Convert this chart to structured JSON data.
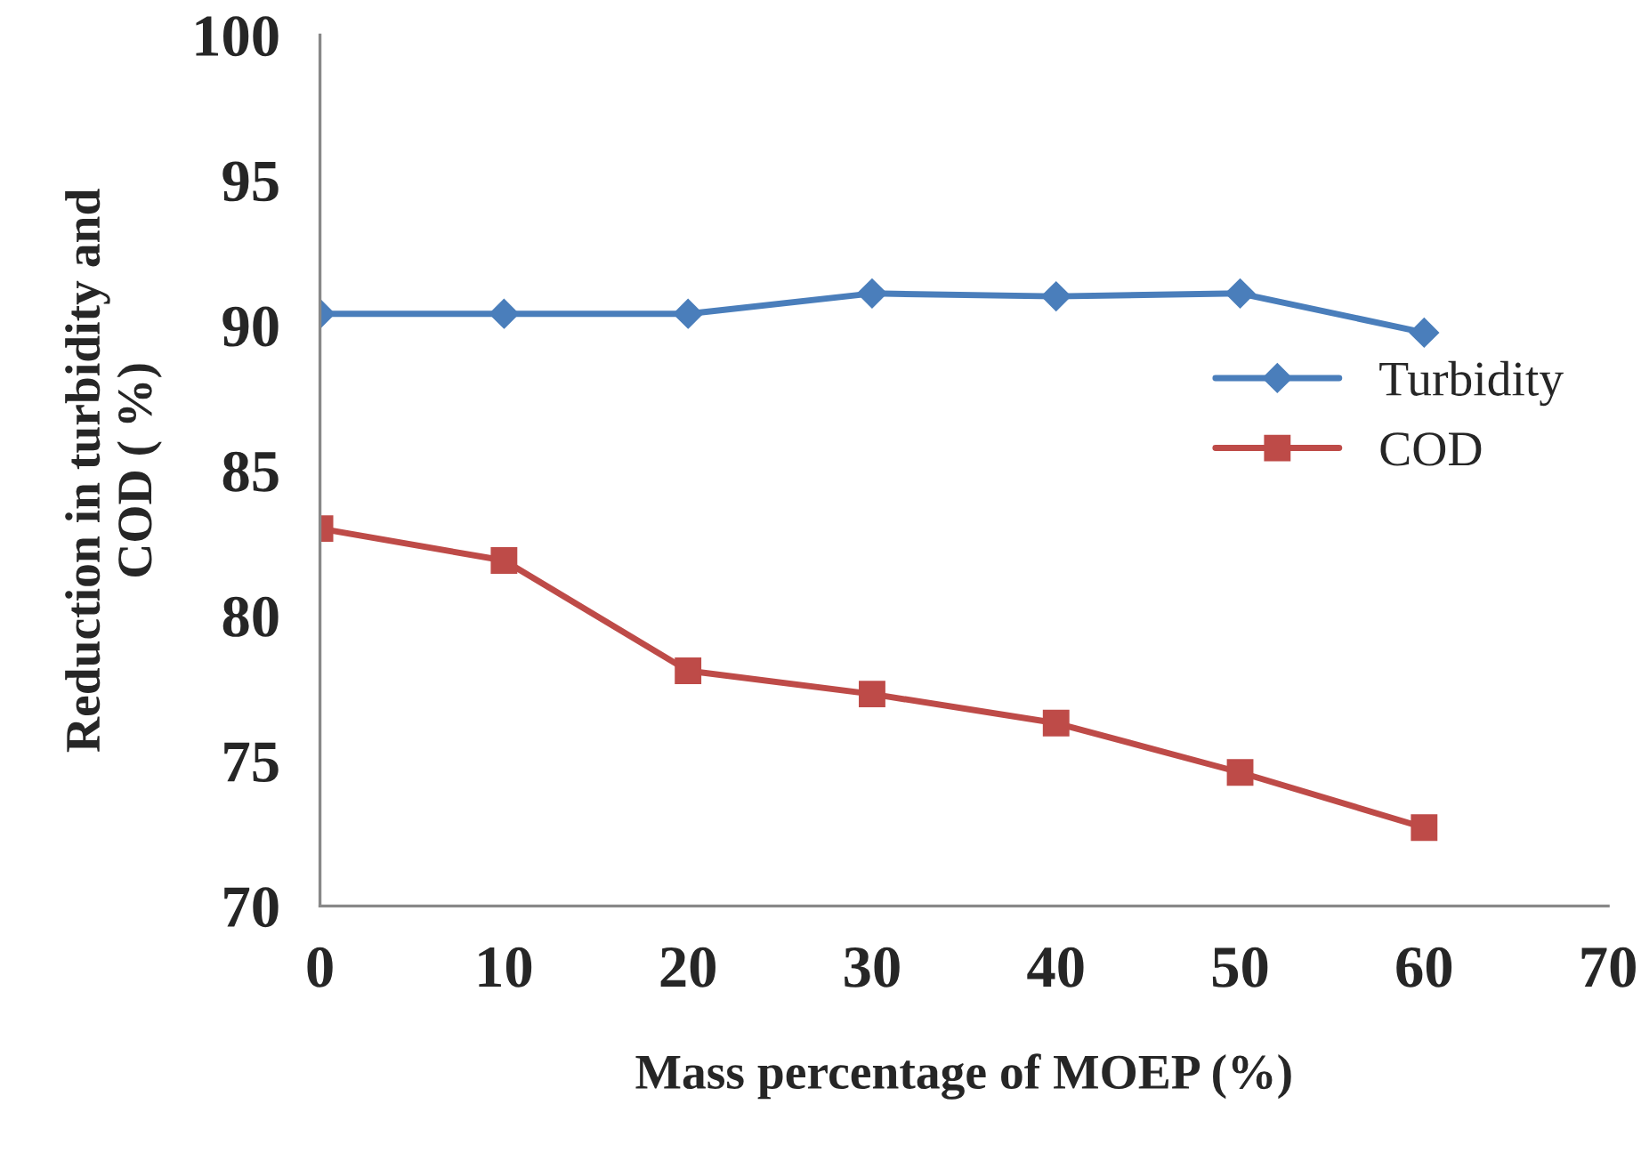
{
  "chart_data": {
    "type": "line",
    "xlabel": "Mass percentage of MOEP (%)",
    "ylabel": "Reduction in turbidity and\nCOD ( %)",
    "x": [
      0,
      10,
      20,
      30,
      40,
      50,
      60
    ],
    "series": [
      {
        "name": "Turbidity",
        "color": "#4a7ebb",
        "marker": "diamond",
        "values": [
          90.4,
          90.4,
          90.4,
          91.1,
          91.0,
          91.1,
          89.75
        ]
      },
      {
        "name": "COD",
        "color": "#be4b48",
        "marker": "square",
        "values": [
          83.0,
          81.9,
          78.1,
          77.3,
          76.3,
          74.6,
          72.7
        ]
      }
    ],
    "xlim": [
      0,
      70
    ],
    "xticks": [
      0,
      10,
      20,
      30,
      40,
      50,
      60,
      70
    ],
    "ylim": [
      70,
      100
    ],
    "yticks": [
      70,
      75,
      80,
      85,
      90,
      95,
      100
    ],
    "grid": false,
    "legend": "right",
    "line_style": "solid"
  }
}
